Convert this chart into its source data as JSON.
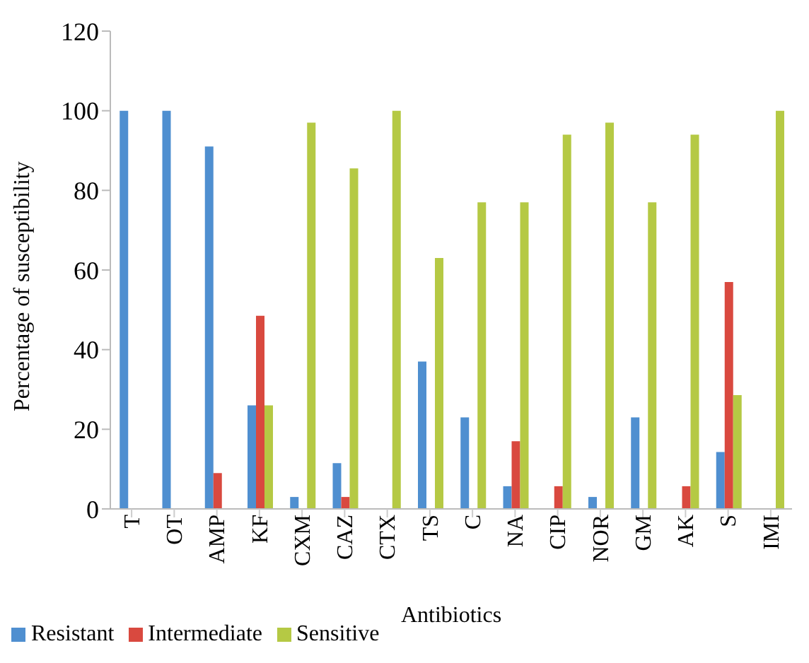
{
  "chart_data": {
    "type": "bar",
    "xlabel": "Antibiotics",
    "ylabel": "Percentage of susceptibility",
    "categories": [
      "T",
      "OT",
      "AMP",
      "KF",
      "CXM",
      "CAZ",
      "CTX",
      "TS",
      "C",
      "NA",
      "CIP",
      "NOR",
      "GM",
      "AK",
      "S",
      "IMI"
    ],
    "series": [
      {
        "name": "Resistant",
        "color": "#4f8fd0",
        "values": [
          100,
          100,
          91,
          26,
          3,
          11.5,
          0,
          37,
          23,
          5.7,
          0,
          3,
          23,
          0,
          14.3,
          0
        ]
      },
      {
        "name": "Intermediate",
        "color": "#d9493f",
        "values": [
          0,
          0,
          9,
          48.5,
          0,
          3,
          0,
          0,
          0,
          17,
          5.7,
          0,
          0,
          5.7,
          57,
          0
        ]
      },
      {
        "name": "Sensitive",
        "color": "#b5c944",
        "values": [
          0,
          0,
          0,
          26,
          97,
          85.5,
          100,
          63,
          77,
          77,
          94,
          97,
          77,
          94,
          28.6,
          100
        ]
      }
    ],
    "ylim": [
      0,
      120
    ],
    "yticks": [
      0,
      20,
      40,
      60,
      80,
      100,
      120
    ],
    "grid": false,
    "legend": "bottom left"
  }
}
